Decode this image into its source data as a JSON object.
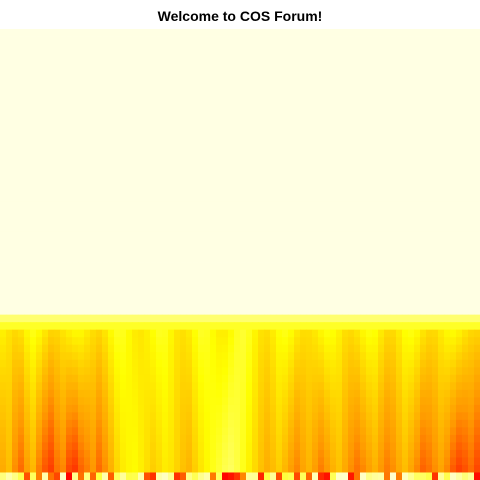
{
  "chart_data": {
    "type": "heatmap",
    "title": "Welcome to COS Forum!",
    "xlabel": "",
    "ylabel": "",
    "grid": false,
    "legend": "none",
    "color_scale": [
      "#fffff2",
      "#ffff00",
      "#ff9900",
      "#ff0000"
    ],
    "columns": 80,
    "rows": 60,
    "column_peaks": [
      0.62,
      0.55,
      0.7,
      0.78,
      0.66,
      0.58,
      0.74,
      0.83,
      0.88,
      0.76,
      0.72,
      0.86,
      0.9,
      0.8,
      0.74,
      0.68,
      0.78,
      0.7,
      0.6,
      0.48,
      0.4,
      0.36,
      0.34,
      0.38,
      0.44,
      0.5,
      0.46,
      0.4,
      0.42,
      0.48,
      0.54,
      0.58,
      0.5,
      0.42,
      0.36,
      0.3,
      0.26,
      0.22,
      0.2,
      0.24,
      0.3,
      0.38,
      0.46,
      0.54,
      0.6,
      0.56,
      0.5,
      0.58,
      0.66,
      0.72,
      0.64,
      0.58,
      0.66,
      0.74,
      0.68,
      0.6,
      0.54,
      0.62,
      0.7,
      0.76,
      0.72,
      0.66,
      0.6,
      0.68,
      0.74,
      0.7,
      0.62,
      0.56,
      0.64,
      0.72,
      0.8,
      0.76,
      0.7,
      0.64,
      0.72,
      0.82,
      0.88,
      0.84,
      0.78,
      0.86
    ],
    "plateau_level": 0.02,
    "transition_row": 38
  }
}
